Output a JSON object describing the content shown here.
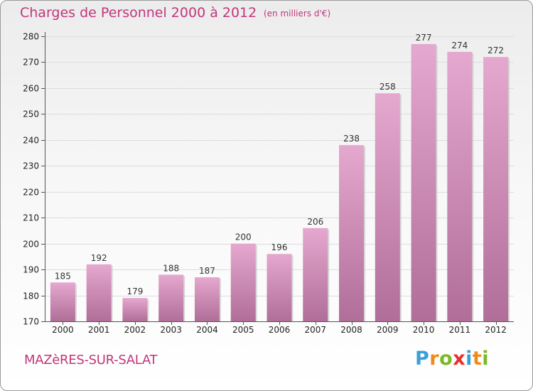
{
  "title": "Charges de Personnel 2000 à 2012",
  "unit_note": "(en milliers d'€)",
  "city": "MAZèRES-SUR-SALAT",
  "logo": {
    "letters": [
      "P",
      "r",
      "o",
      "x",
      "i",
      "t",
      "i"
    ],
    "colors": [
      "#3aa0d8",
      "#f08a1c",
      "#7ab828",
      "#e8302a",
      "#3aa0d8",
      "#f08a1c",
      "#7ab828"
    ]
  },
  "colors": {
    "bar_top": "#e5a8cf",
    "bar_bottom": "#b06e98",
    "grid": "#dddddd",
    "axis": "#555555"
  },
  "chart_data": {
    "type": "bar",
    "title": "Charges de Personnel 2000 à 2012",
    "xlabel": "",
    "ylabel": "",
    "categories": [
      "2000",
      "2001",
      "2002",
      "2003",
      "2004",
      "2005",
      "2006",
      "2007",
      "2008",
      "2009",
      "2010",
      "2011",
      "2012"
    ],
    "values": [
      185,
      192,
      179,
      188,
      187,
      200,
      196,
      206,
      238,
      258,
      277,
      274,
      272
    ],
    "ylim": [
      170,
      280
    ],
    "yticks": [
      170,
      180,
      190,
      200,
      210,
      220,
      230,
      240,
      250,
      260,
      270,
      280
    ],
    "grid": true
  }
}
